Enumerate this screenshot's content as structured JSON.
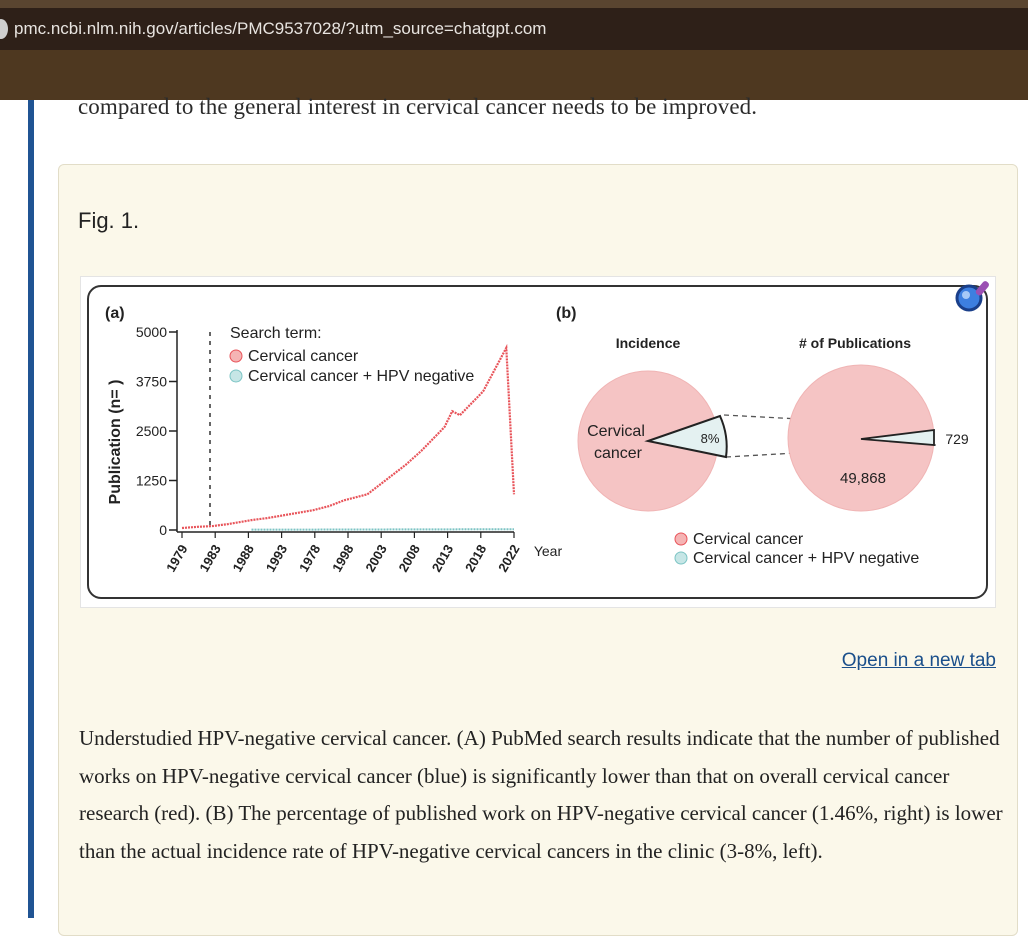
{
  "browser": {
    "url": "pmc.ncbi.nlm.nih.gov/articles/PMC9537028/?utm_source=chatgpt.com"
  },
  "article": {
    "prev_text": "compared to the general interest in cervical cancer needs to be improved.",
    "figure_label": "Fig. 1.",
    "open_new_tab": "Open in a new tab",
    "caption": "Understudied HPV-negative cervical cancer. (A) PubMed search results indicate that the number of published works on HPV-negative cervical cancer (blue) is significantly lower than that on overall cervical cancer research (red). (B) The percentage of published work on HPV-negative cervical cancer (1.46%, right) is lower than the actual incidence rate of HPV-negative cervical cancers in the clinic (3-8%, left)."
  },
  "colors": {
    "red_series": "#e8545a",
    "blue_series": "#7cc4c4",
    "pie_fill": "#f5c4c4",
    "pie_slice": "#e4f1f1",
    "leftbar": "#205493"
  },
  "chart_data": [
    {
      "type": "line",
      "panel_label": "(a)",
      "ylabel": "Publication (n= )",
      "xlabel": "Year",
      "yticks": [
        "5000",
        "3750",
        "2500",
        "1250",
        "0"
      ],
      "ylim": [
        0,
        5000
      ],
      "x_tick_labels": [
        "1979",
        "1983",
        "1988",
        "1993",
        "1978",
        "1998",
        "2003",
        "2008",
        "2013",
        "2018",
        "2022"
      ],
      "legend_title": "Search term:",
      "series": [
        {
          "name": "Cervical cancer",
          "color": "#e8545a",
          "x": [
            1979,
            1981,
            1983,
            1985,
            1988,
            1990,
            1993,
            1996,
            1998,
            2000,
            2003,
            2005,
            2008,
            2010,
            2013,
            2014,
            2015,
            2018,
            2021,
            2022
          ],
          "values": [
            50,
            80,
            100,
            150,
            250,
            300,
            400,
            500,
            600,
            750,
            900,
            1200,
            1650,
            2000,
            2600,
            3000,
            2900,
            3500,
            4600,
            900
          ]
        },
        {
          "name": "Cervical cancer + HPV negative",
          "color": "#7cc4c4",
          "x": [
            1988,
            2022
          ],
          "values": [
            8,
            20
          ]
        }
      ],
      "annotations": {
        "dashed_vline_x": 1983
      }
    },
    {
      "type": "pie",
      "panel_label": "(b)",
      "pies": [
        {
          "title": "Incidence",
          "segments": [
            {
              "label": "Cervical cancer",
              "value": 92
            },
            {
              "label": "8%",
              "value": 8
            }
          ]
        },
        {
          "title": "# of Publications",
          "segments": [
            {
              "label": "49,868",
              "value": 49868
            },
            {
              "label": "729",
              "value": 729
            }
          ]
        }
      ],
      "legend": [
        "Cervical cancer",
        "Cervical cancer + HPV negative"
      ]
    }
  ]
}
